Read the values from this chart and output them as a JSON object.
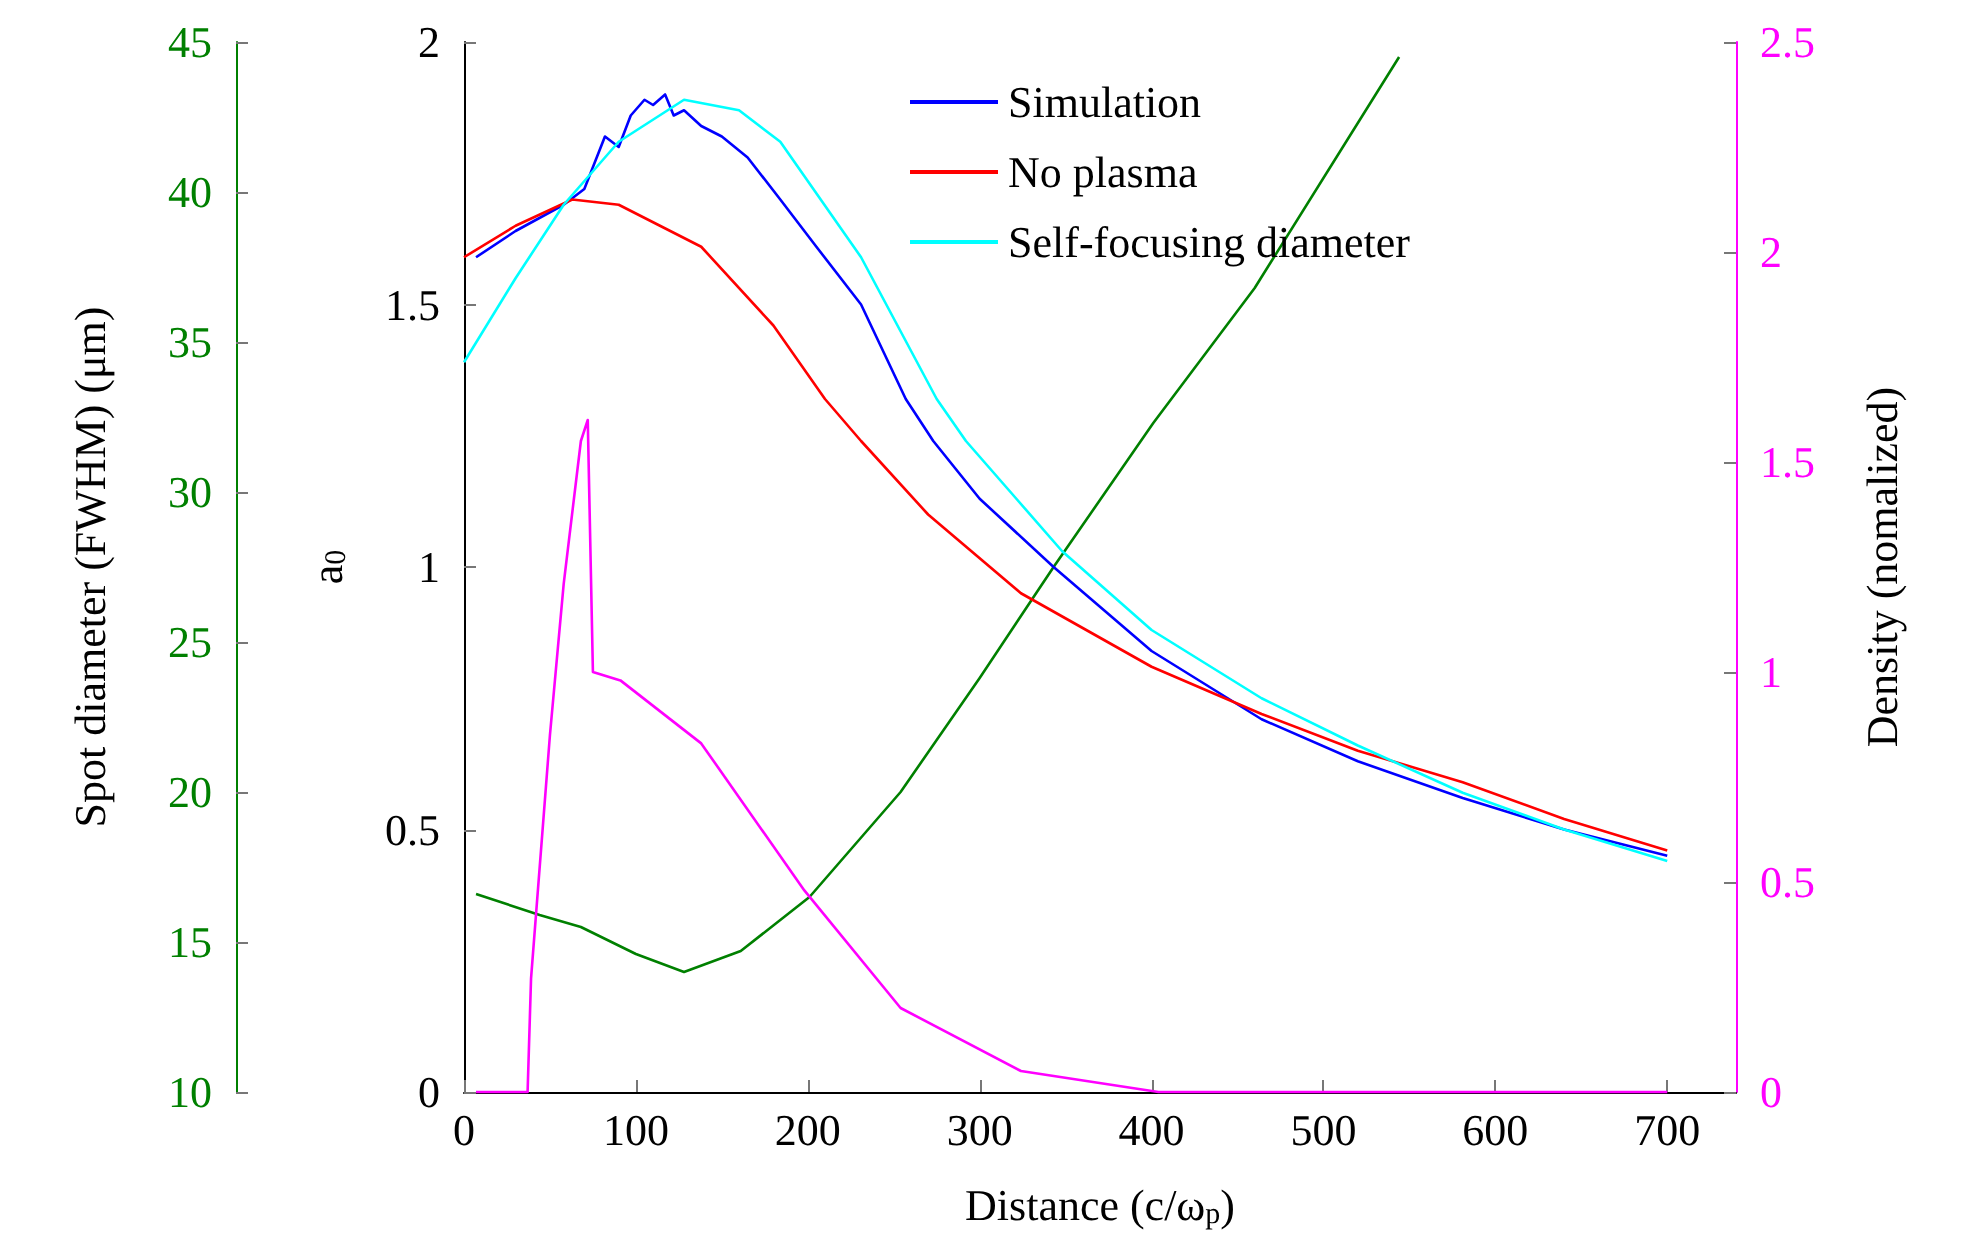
{
  "chart_data": {
    "type": "line",
    "xlabel": "Distance (c/ω$_{p}$)",
    "ylabel": "a$_{0}$",
    "y2label": "Spot diameter (FWHM) (μm)",
    "y3label": "Density (nomalized)",
    "xlim": [
      0,
      740
    ],
    "xticks": [
      0,
      100,
      200,
      300,
      400,
      500,
      600,
      700
    ],
    "ylim": [
      0,
      2
    ],
    "yticks": [
      0,
      0.5,
      1,
      1.5,
      2
    ],
    "y2lim": [
      10,
      45
    ],
    "y2ticks": [
      10,
      15,
      20,
      25,
      30,
      35,
      40,
      45
    ],
    "y3lim": [
      0,
      2.5
    ],
    "y3ticks": [
      0,
      0.5,
      1,
      1.5,
      2,
      2.5
    ],
    "grid": false,
    "legend": "top",
    "marker": "none",
    "line_style": "solid",
    "series": [
      {
        "name": "Simulation",
        "color": "#0000ff",
        "x": [
          7,
          30,
          58,
          70,
          82,
          90,
          97,
          105,
          110,
          117,
          122,
          128,
          138,
          150,
          165,
          184,
          205,
          231,
          257,
          273,
          300,
          343,
          400,
          464,
          520,
          581,
          640,
          700
        ],
        "values": [
          1.59,
          1.64,
          1.69,
          1.72,
          1.82,
          1.8,
          1.86,
          1.89,
          1.88,
          1.9,
          1.86,
          1.87,
          1.84,
          1.82,
          1.78,
          1.7,
          1.61,
          1.5,
          1.32,
          1.24,
          1.13,
          1.0,
          0.84,
          0.71,
          0.63,
          0.56,
          0.5,
          0.45
        ]
      },
      {
        "name": "No plasma",
        "color": "#ff0000",
        "x": [
          0,
          30,
          63,
          90,
          138,
          180,
          210,
          231,
          270,
          324,
          400,
          464,
          520,
          581,
          640,
          700
        ],
        "values": [
          1.59,
          1.65,
          1.7,
          1.69,
          1.61,
          1.46,
          1.32,
          1.24,
          1.1,
          0.95,
          0.81,
          0.72,
          0.65,
          0.59,
          0.52,
          0.46
        ]
      },
      {
        "name": "Self-focusing diameter",
        "color": "#00ffff",
        "x": [
          0,
          30,
          58,
          90,
          128,
          160,
          184,
          231,
          275,
          292,
          348,
          400,
          464,
          520,
          581,
          640,
          700
        ],
        "values": [
          1.39,
          1.55,
          1.69,
          1.81,
          1.89,
          1.87,
          1.81,
          1.59,
          1.32,
          1.24,
          1.03,
          0.88,
          0.75,
          0.66,
          0.57,
          0.5,
          0.44
        ]
      },
      {
        "color": "#008000",
        "axis": "y2",
        "x": [
          7,
          44,
          68,
          100,
          128,
          161,
          201,
          254,
          300,
          343,
          401,
          460,
          544
        ],
        "values": [
          16.6,
          15.9,
          15.5,
          14.6,
          14.0,
          14.7,
          16.5,
          20,
          23.8,
          27.5,
          32.3,
          36.8,
          44.5
        ]
      },
      {
        "color": "#ff00ff",
        "axis": "y3",
        "x": [
          7,
          37,
          39,
          50,
          58,
          68,
          72,
          75,
          91,
          138,
          198,
          254,
          324,
          404,
          500,
          700
        ],
        "values": [
          0,
          0,
          0.27,
          0.85,
          1.21,
          1.55,
          1.6,
          1.0,
          0.98,
          0.83,
          0.48,
          0.2,
          0.05,
          0,
          0,
          0
        ]
      }
    ]
  }
}
